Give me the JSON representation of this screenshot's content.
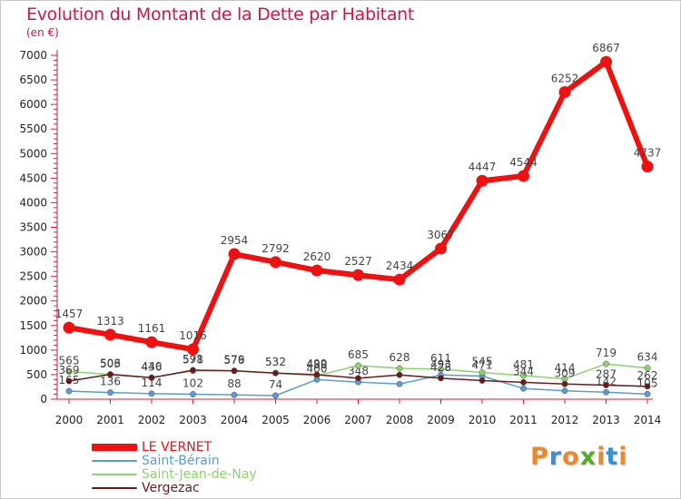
{
  "header": {
    "title": "Evolution du Montant de la Dette par Habitant",
    "unit": "(en €)"
  },
  "logo": {
    "text": "Proxiti",
    "colors": [
      "#e8892a",
      "#3a8fd0",
      "#e8892a",
      "#5aaa2a",
      "#e8892a",
      "#3a8fd0",
      "#e8892a"
    ]
  },
  "chart_data": {
    "type": "line",
    "title": "Evolution du Montant de la Dette par Habitant",
    "ylabel": "(en €)",
    "x": [
      "2000",
      "2001",
      "2002",
      "2003",
      "2004",
      "2005",
      "2006",
      "2007",
      "2008",
      "2009",
      "2010",
      "2011",
      "2012",
      "2013",
      "2014"
    ],
    "ylim": [
      0,
      7000
    ],
    "yticks": [
      0,
      500,
      1000,
      1500,
      2000,
      2500,
      3000,
      3500,
      4000,
      4500,
      5000,
      5500,
      6000,
      6500,
      7000
    ],
    "grid": false,
    "legend_position": "bottom-left",
    "series": [
      {
        "name": "Saint-Bérain",
        "color": "#5b9bd5",
        "values": [
          165,
          136,
          114,
          102,
          88,
          74,
          400,
          348,
          310,
          493,
          471,
          218,
          171,
          142,
          105
        ],
        "labels": [
          "165",
          "136",
          "114",
          "102",
          "88",
          "74",
          "400",
          "348",
          "",
          "493",
          "471",
          "",
          "",
          "142",
          "105"
        ]
      },
      {
        "name": "Saint-Jean-de-Nay",
        "color": "#8ed26c",
        "values": [
          565,
          503,
          440,
          578,
          576,
          532,
          480,
          685,
          628,
          611,
          545,
          481,
          414,
          719,
          634
        ],
        "labels": [
          "565",
          "503",
          "440",
          "578",
          "576",
          "532",
          "480",
          "685",
          "628",
          "611",
          "545",
          "481",
          "414",
          "719",
          "634"
        ]
      },
      {
        "name": "Vergezac",
        "color": "#6b1a1a",
        "values": [
          369,
          506,
          436,
          591,
          579,
          532,
          499,
          428,
          495,
          428,
          379,
          344,
          309,
          287,
          262
        ],
        "labels": [
          "369",
          "506",
          "436",
          "591",
          "579",
          "532",
          "499",
          "",
          "",
          "428",
          "",
          "344",
          "309",
          "287",
          "262"
        ]
      },
      {
        "name": "LE VERNET",
        "color": "#ee1111",
        "values": [
          1457,
          1313,
          1161,
          1016,
          2954,
          2792,
          2620,
          2527,
          2434,
          3067,
          4447,
          4544,
          6252,
          6867,
          4737
        ],
        "labels": [
          "1457",
          "1313",
          "1161",
          "1016",
          "2954",
          "2792",
          "2620",
          "2527",
          "2434",
          "3067",
          "4447",
          "4544",
          "6252",
          "6867",
          "4737"
        ]
      }
    ]
  },
  "legend": [
    {
      "name": "LE VERNET",
      "color": "#ee1111"
    },
    {
      "name": "Saint-Bérain",
      "color": "#5b9bd5"
    },
    {
      "name": "Saint-Jean-de-Nay",
      "color": "#8ed26c"
    },
    {
      "name": "Vergezac",
      "color": "#6b1a1a"
    }
  ]
}
